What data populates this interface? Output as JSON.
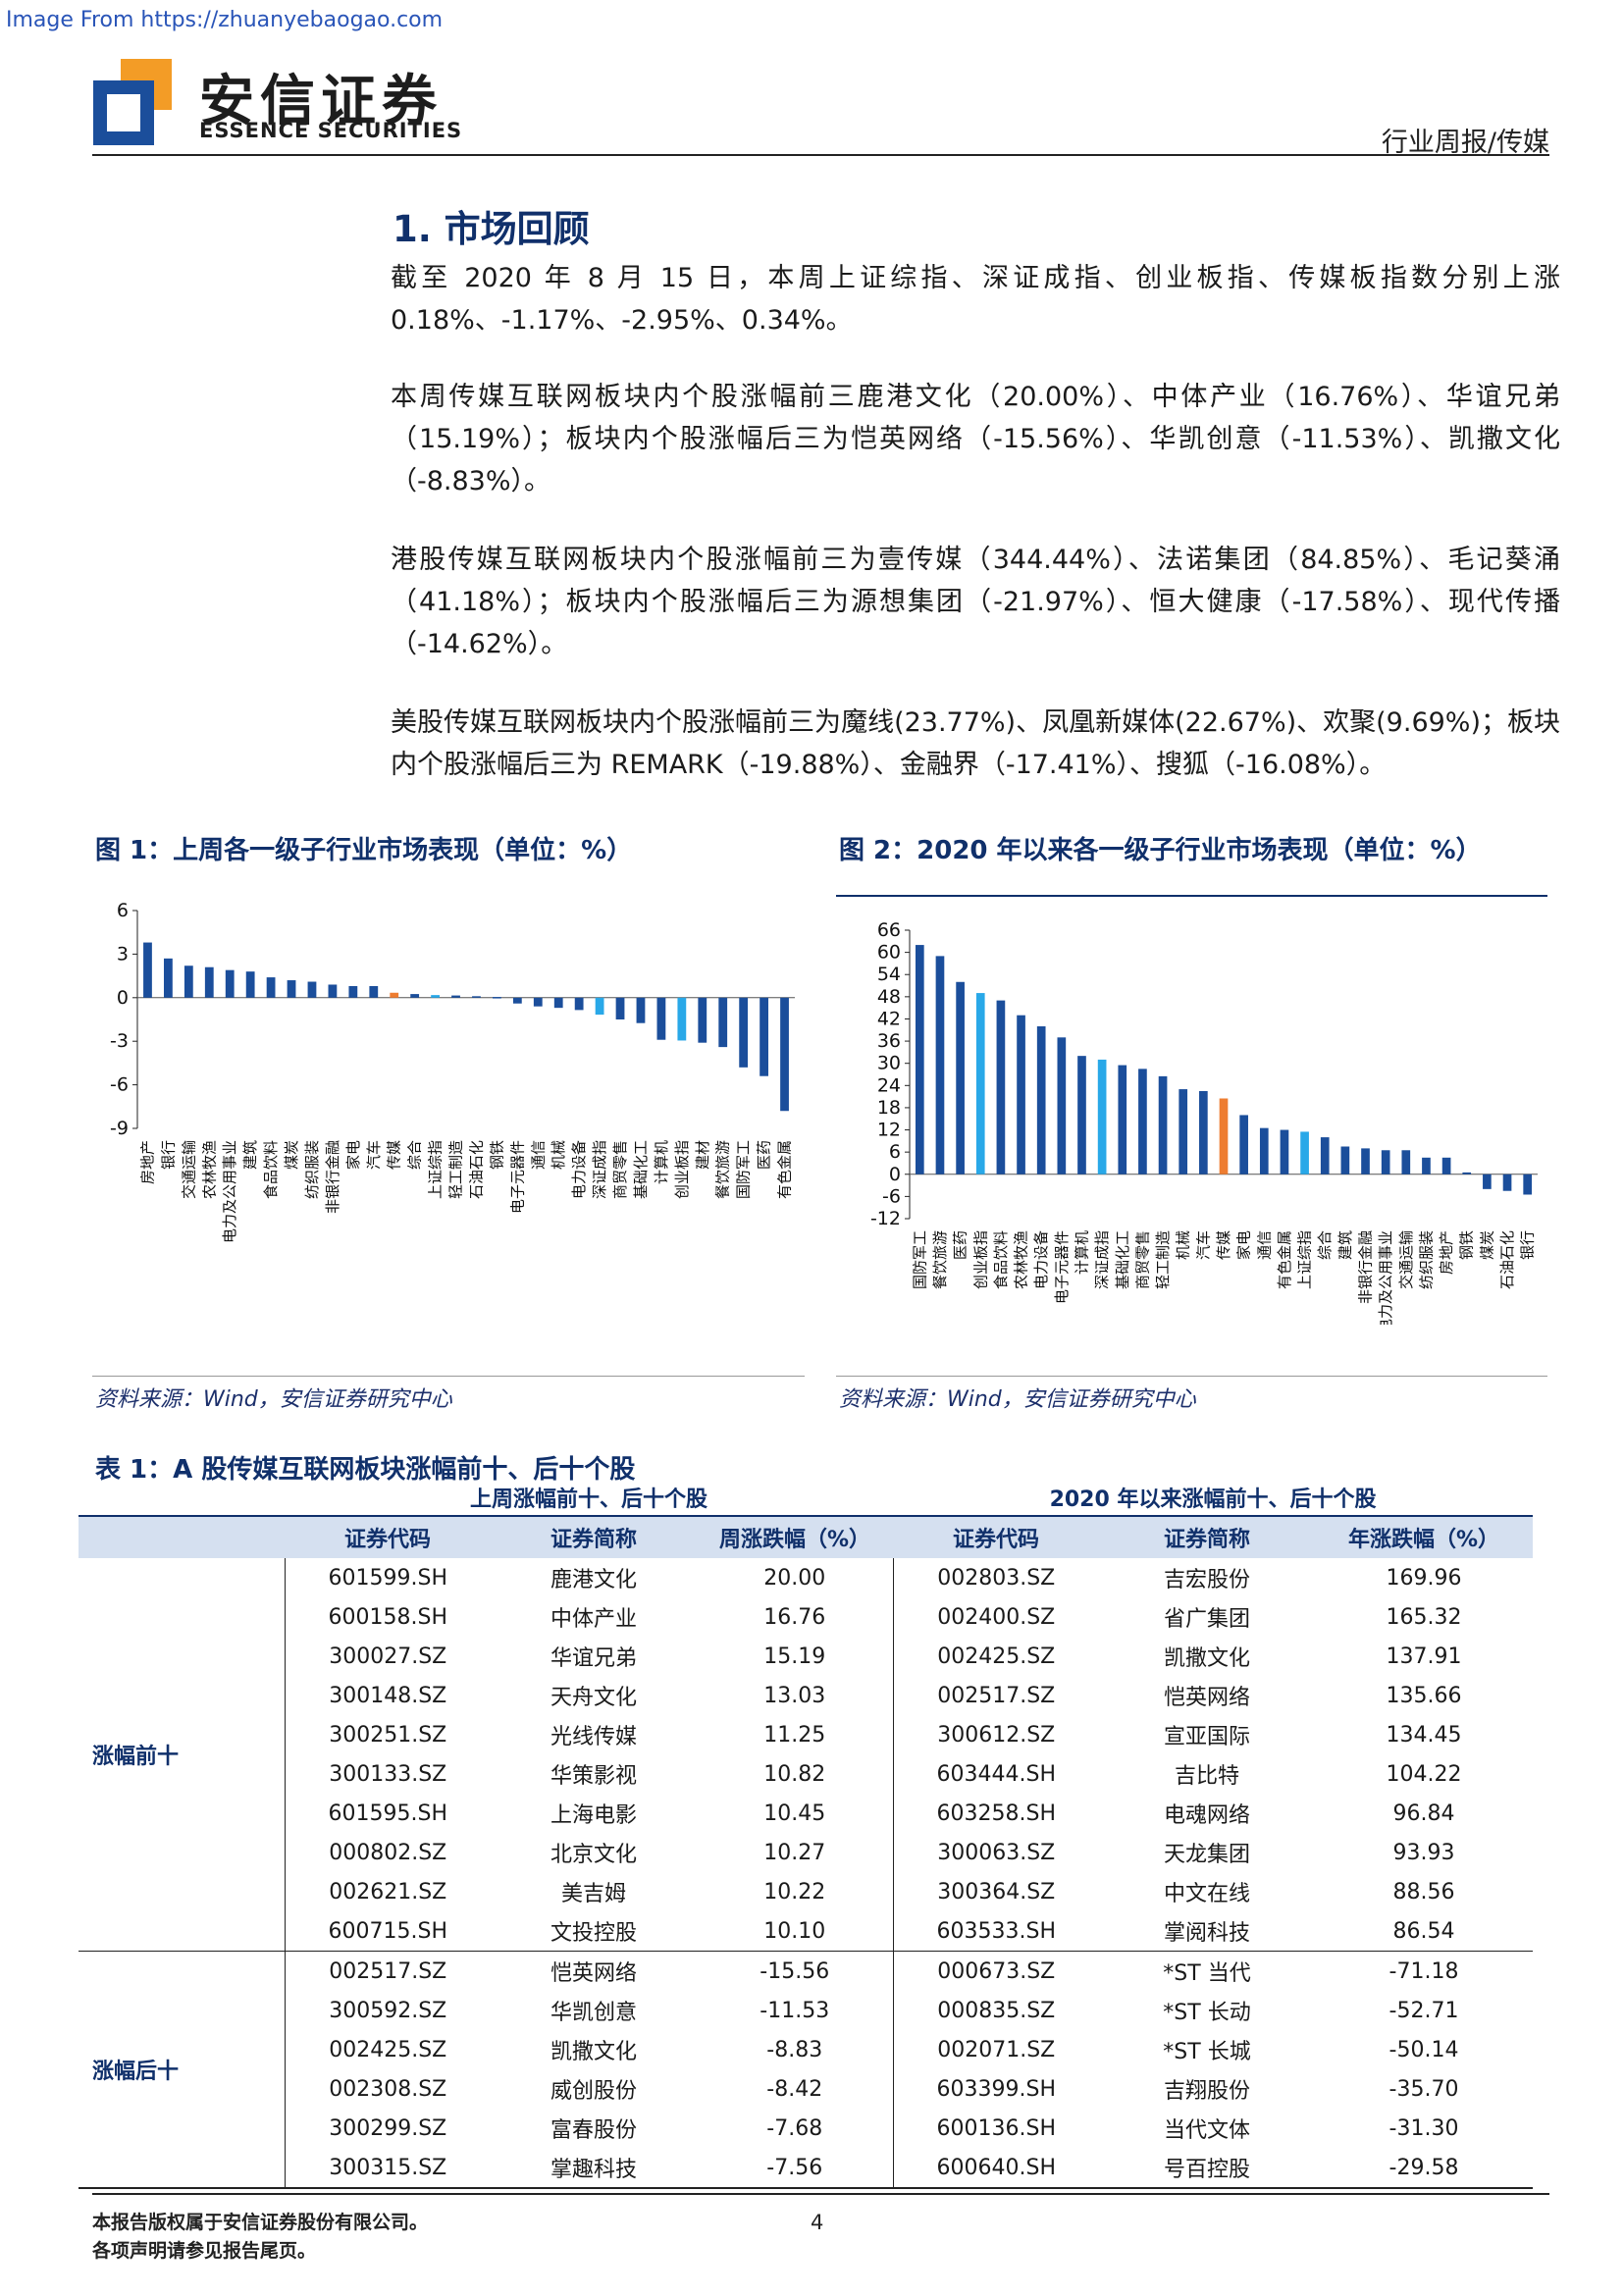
{
  "watermark": "Image From https://zhuanyebaogao.com",
  "brand": {
    "cn": "安信证券",
    "en": "ESSENCE SECURITIES",
    "colors": {
      "blue": "#1b4e9b",
      "orange": "#f39c26"
    }
  },
  "header": {
    "category": "行业周报/传媒"
  },
  "section": {
    "title": "1. 市场回顾"
  },
  "paragraphs": [
    "截至 2020 年 8 月 15 日，本周上证综指、深证成指、创业板指、传媒板指数分别上涨 0.18%、-1.17%、-2.95%、0.34%。",
    "本周传媒互联网板块内个股涨幅前三鹿港文化（20.00%）、中体产业（16.76%）、华谊兄弟（15.19%）；板块内个股涨幅后三为恺英网络（-15.56%）、华凯创意（-11.53%）、凯撒文化（-8.83%）。",
    "港股传媒互联网板块内个股涨幅前三为壹传媒（344.44%）、法诺集团（84.85%）、毛记葵涌（41.18%）；板块内个股涨幅后三为源想集团（-21.97%）、恒大健康（-17.58%）、现代传播（-14.62%）。",
    "美股传媒互联网板块内个股涨幅前三为魔线(23.77%)、凤凰新媒体(22.67%)、欢聚(9.69%)；板块内个股涨幅后三为 REMARK（-19.88%）、金融界（-17.41%）、搜狐（-16.08%）。"
  ],
  "figures": {
    "fig1": {
      "title": "图 1：上周各一级子行业市场表现（单位：%）",
      "source": "资料来源：Wind，安信证券研究中心"
    },
    "fig2": {
      "title": "图 2：2020 年以来各一级子行业市场表现（单位：%）",
      "source": "资料来源：Wind，安信证券研究中心"
    }
  },
  "chart_data": [
    {
      "type": "bar",
      "ylim": [
        -9,
        6
      ],
      "yticks": [
        6,
        3,
        0,
        -3,
        -6,
        -9
      ],
      "categories": [
        "房地产",
        "银行",
        "交通运输",
        "农林牧渔",
        "电力及公用事业",
        "建筑",
        "食品饮料",
        "煤炭",
        "纺织服装",
        "非银行金融",
        "家电",
        "汽车",
        "传媒",
        "综合",
        "上证综指",
        "轻工制造",
        "石油石化",
        "钢铁",
        "电子元器件",
        "通信",
        "机械",
        "电力设备",
        "深证成指",
        "商贸零售",
        "基础化工",
        "计算机",
        "创业板指",
        "建材",
        "餐饮旅游",
        "国防军工",
        "医药",
        "有色金属"
      ],
      "values": [
        3.8,
        2.7,
        2.2,
        2.1,
        1.9,
        1.8,
        1.4,
        1.2,
        1.1,
        0.9,
        0.8,
        0.8,
        0.34,
        0.25,
        0.18,
        0.15,
        0.1,
        0.05,
        -0.4,
        -0.6,
        -0.7,
        -0.85,
        -1.17,
        -1.5,
        -1.75,
        -2.9,
        -2.95,
        -3.1,
        -3.4,
        -4.8,
        -5.4,
        -7.8
      ],
      "colors": [
        "#1b4e9b",
        "#1b4e9b",
        "#1b4e9b",
        "#1b4e9b",
        "#1b4e9b",
        "#1b4e9b",
        "#1b4e9b",
        "#1b4e9b",
        "#1b4e9b",
        "#1b4e9b",
        "#1b4e9b",
        "#1b4e9b",
        "#ee7d31",
        "#1b4e9b",
        "#29a8e8",
        "#1b4e9b",
        "#1b4e9b",
        "#1b4e9b",
        "#1b4e9b",
        "#1b4e9b",
        "#1b4e9b",
        "#1b4e9b",
        "#29a8e8",
        "#1b4e9b",
        "#1b4e9b",
        "#1b4e9b",
        "#29a8e8",
        "#1b4e9b",
        "#1b4e9b",
        "#1b4e9b",
        "#1b4e9b",
        "#1b4e9b"
      ]
    },
    {
      "type": "bar",
      "ylim": [
        -12,
        66
      ],
      "yticks": [
        66,
        60,
        54,
        48,
        42,
        36,
        30,
        24,
        18,
        12,
        6,
        0,
        -6,
        -12
      ],
      "categories": [
        "国防军工",
        "餐饮旅游",
        "医药",
        "创业板指",
        "食品饮料",
        "农林牧渔",
        "电力设备",
        "电子元器件",
        "计算机",
        "深证成指",
        "基础化工",
        "商贸零售",
        "轻工制造",
        "机械",
        "汽车",
        "传媒",
        "家电",
        "通信",
        "有色金属",
        "上证综指",
        "综合",
        "建筑",
        "非银行金融",
        "电力及公用事业",
        "交通运输",
        "纺织服装",
        "房地产",
        "钢铁",
        "煤炭",
        "石油石化",
        "银行"
      ],
      "values": [
        62,
        59,
        52,
        49,
        47,
        43,
        40,
        37,
        32,
        31,
        29.5,
        28.5,
        26.5,
        23,
        22.5,
        20.5,
        16,
        12.5,
        12,
        11.5,
        10,
        7.5,
        7,
        6.5,
        6.5,
        4.5,
        4.5,
        0.5,
        -4,
        -4.5,
        -5.5
      ],
      "colors": [
        "#1b4e9b",
        "#1b4e9b",
        "#1b4e9b",
        "#29a8e8",
        "#1b4e9b",
        "#1b4e9b",
        "#1b4e9b",
        "#1b4e9b",
        "#1b4e9b",
        "#29a8e8",
        "#1b4e9b",
        "#1b4e9b",
        "#1b4e9b",
        "#1b4e9b",
        "#1b4e9b",
        "#ee7d31",
        "#1b4e9b",
        "#1b4e9b",
        "#1b4e9b",
        "#29a8e8",
        "#1b4e9b",
        "#1b4e9b",
        "#1b4e9b",
        "#1b4e9b",
        "#1b4e9b",
        "#1b4e9b",
        "#1b4e9b",
        "#1b4e9b",
        "#1b4e9b",
        "#1b4e9b",
        "#1b4e9b"
      ]
    }
  ],
  "table": {
    "title": "表 1：A 股传媒互联网板块涨幅前十、后十个股",
    "group_week": "上周涨幅前十、后十个股",
    "group_year": "2020 年以来涨幅前十、后十个股",
    "headers": [
      "证券代码",
      "证券简称",
      "周涨跌幅（%）",
      "证券代码",
      "证券简称",
      "年涨跌幅（%）"
    ],
    "label_top": "涨幅前十",
    "label_bottom": "涨幅后十",
    "top_rows": [
      [
        "601599.SH",
        "鹿港文化",
        "20.00",
        "002803.SZ",
        "吉宏股份",
        "169.96"
      ],
      [
        "600158.SH",
        "中体产业",
        "16.76",
        "002400.SZ",
        "省广集团",
        "165.32"
      ],
      [
        "300027.SZ",
        "华谊兄弟",
        "15.19",
        "002425.SZ",
        "凯撒文化",
        "137.91"
      ],
      [
        "300148.SZ",
        "天舟文化",
        "13.03",
        "002517.SZ",
        "恺英网络",
        "135.66"
      ],
      [
        "300251.SZ",
        "光线传媒",
        "11.25",
        "300612.SZ",
        "宣亚国际",
        "134.45"
      ],
      [
        "300133.SZ",
        "华策影视",
        "10.82",
        "603444.SH",
        "吉比特",
        "104.22"
      ],
      [
        "601595.SH",
        "上海电影",
        "10.45",
        "603258.SH",
        "电魂网络",
        "96.84"
      ],
      [
        "000802.SZ",
        "北京文化",
        "10.27",
        "300063.SZ",
        "天龙集团",
        "93.93"
      ],
      [
        "002621.SZ",
        "美吉姆",
        "10.22",
        "300364.SZ",
        "中文在线",
        "88.56"
      ],
      [
        "600715.SH",
        "文投控股",
        "10.10",
        "603533.SH",
        "掌阅科技",
        "86.54"
      ]
    ],
    "bottom_rows": [
      [
        "002517.SZ",
        "恺英网络",
        "-15.56",
        "000673.SZ",
        "*ST 当代",
        "-71.18"
      ],
      [
        "300592.SZ",
        "华凯创意",
        "-11.53",
        "000835.SZ",
        "*ST 长动",
        "-52.71"
      ],
      [
        "002425.SZ",
        "凯撒文化",
        "-8.83",
        "002071.SZ",
        "*ST 长城",
        "-50.14"
      ],
      [
        "002308.SZ",
        "威创股份",
        "-8.42",
        "603399.SH",
        "吉翔股份",
        "-35.70"
      ],
      [
        "300299.SZ",
        "富春股份",
        "-7.68",
        "600136.SH",
        "当代文体",
        "-31.30"
      ],
      [
        "300315.SZ",
        "掌趣科技",
        "-7.56",
        "600640.SH",
        "号百控股",
        "-29.58"
      ]
    ]
  },
  "footer": {
    "line1": "本报告版权属于安信证券股份有限公司。",
    "line2": "各项声明请参见报告尾页。",
    "page": "4"
  }
}
